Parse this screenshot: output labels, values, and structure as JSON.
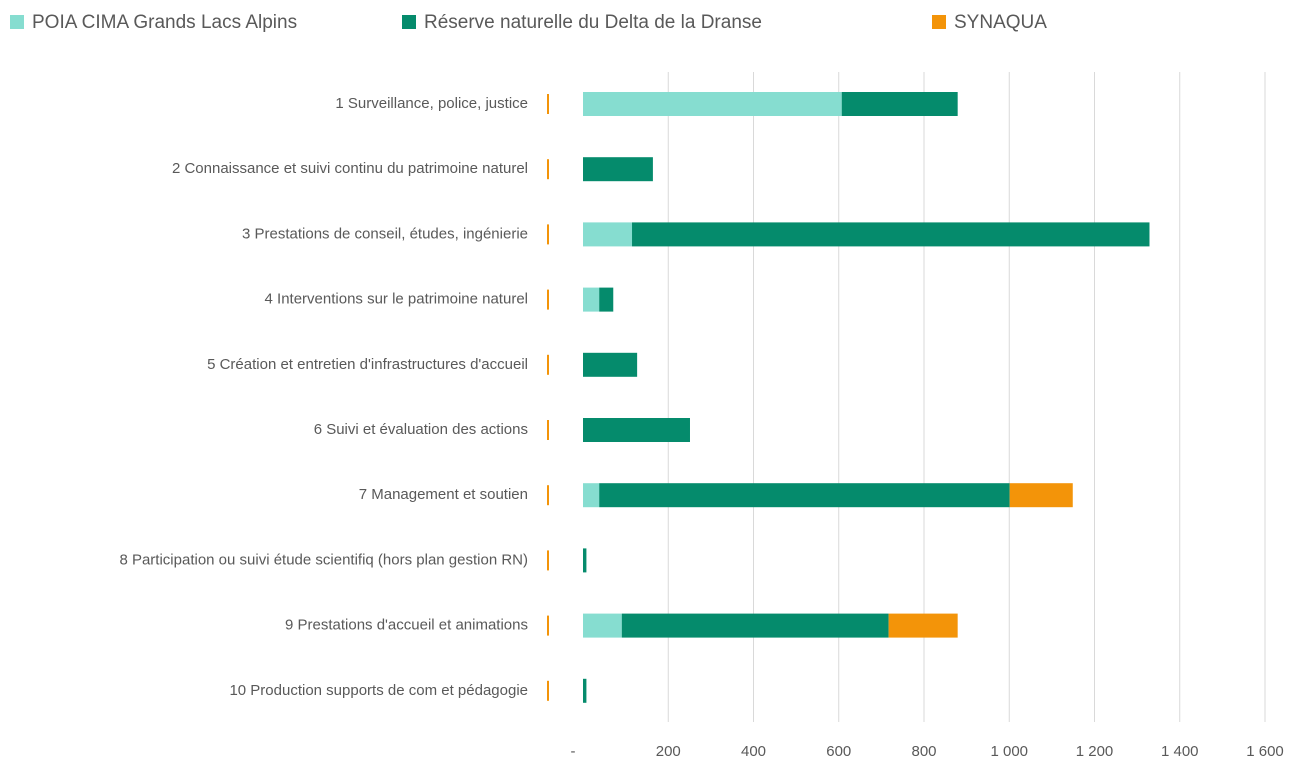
{
  "chart_data": {
    "type": "stacked-barh",
    "categories": [
      "1 Surveillance, police, justice",
      "2 Connaissance et suivi continu du patrimoine naturel",
      "3 Prestations de conseil, études, ingénierie",
      "4 Interventions sur le patrimoine naturel",
      "5 Création et entretien d'infrastructures d'accueil",
      "6 Suivi et évaluation des actions",
      "7 Management et soutien",
      "8 Participation ou suivi étude scientifiq (hors plan gestion RN)",
      "9 Prestations d'accueil et animations",
      "10 Production supports de com et pédagogie"
    ],
    "series": [
      {
        "name": "POIA CIMA Grands Lacs Alpins",
        "color": "#86ddd0",
        "values": [
          607,
          0,
          115,
          38,
          0,
          0,
          38,
          0,
          91,
          0
        ]
      },
      {
        "name": "Réserve naturelle du Delta de la Dranse",
        "color": "#058b6c",
        "values": [
          272,
          164,
          1214,
          33,
          127,
          251,
          963,
          8,
          626,
          8
        ]
      },
      {
        "name": "SYNAQUA",
        "color": "#f39409",
        "values": [
          0,
          0,
          0,
          0,
          0,
          0,
          148,
          0,
          162,
          0
        ]
      }
    ],
    "xlim": [
      0,
      1600
    ],
    "xticks": [
      {
        "value": 0,
        "label": "-"
      },
      200,
      400,
      600,
      800,
      {
        "value": 1000,
        "label": "1 000"
      },
      {
        "value": 1200,
        "label": "1 200"
      },
      {
        "value": 1400,
        "label": "1 400"
      },
      {
        "value": 1600,
        "label": "1 600"
      }
    ],
    "grid": true,
    "legend": "top"
  }
}
